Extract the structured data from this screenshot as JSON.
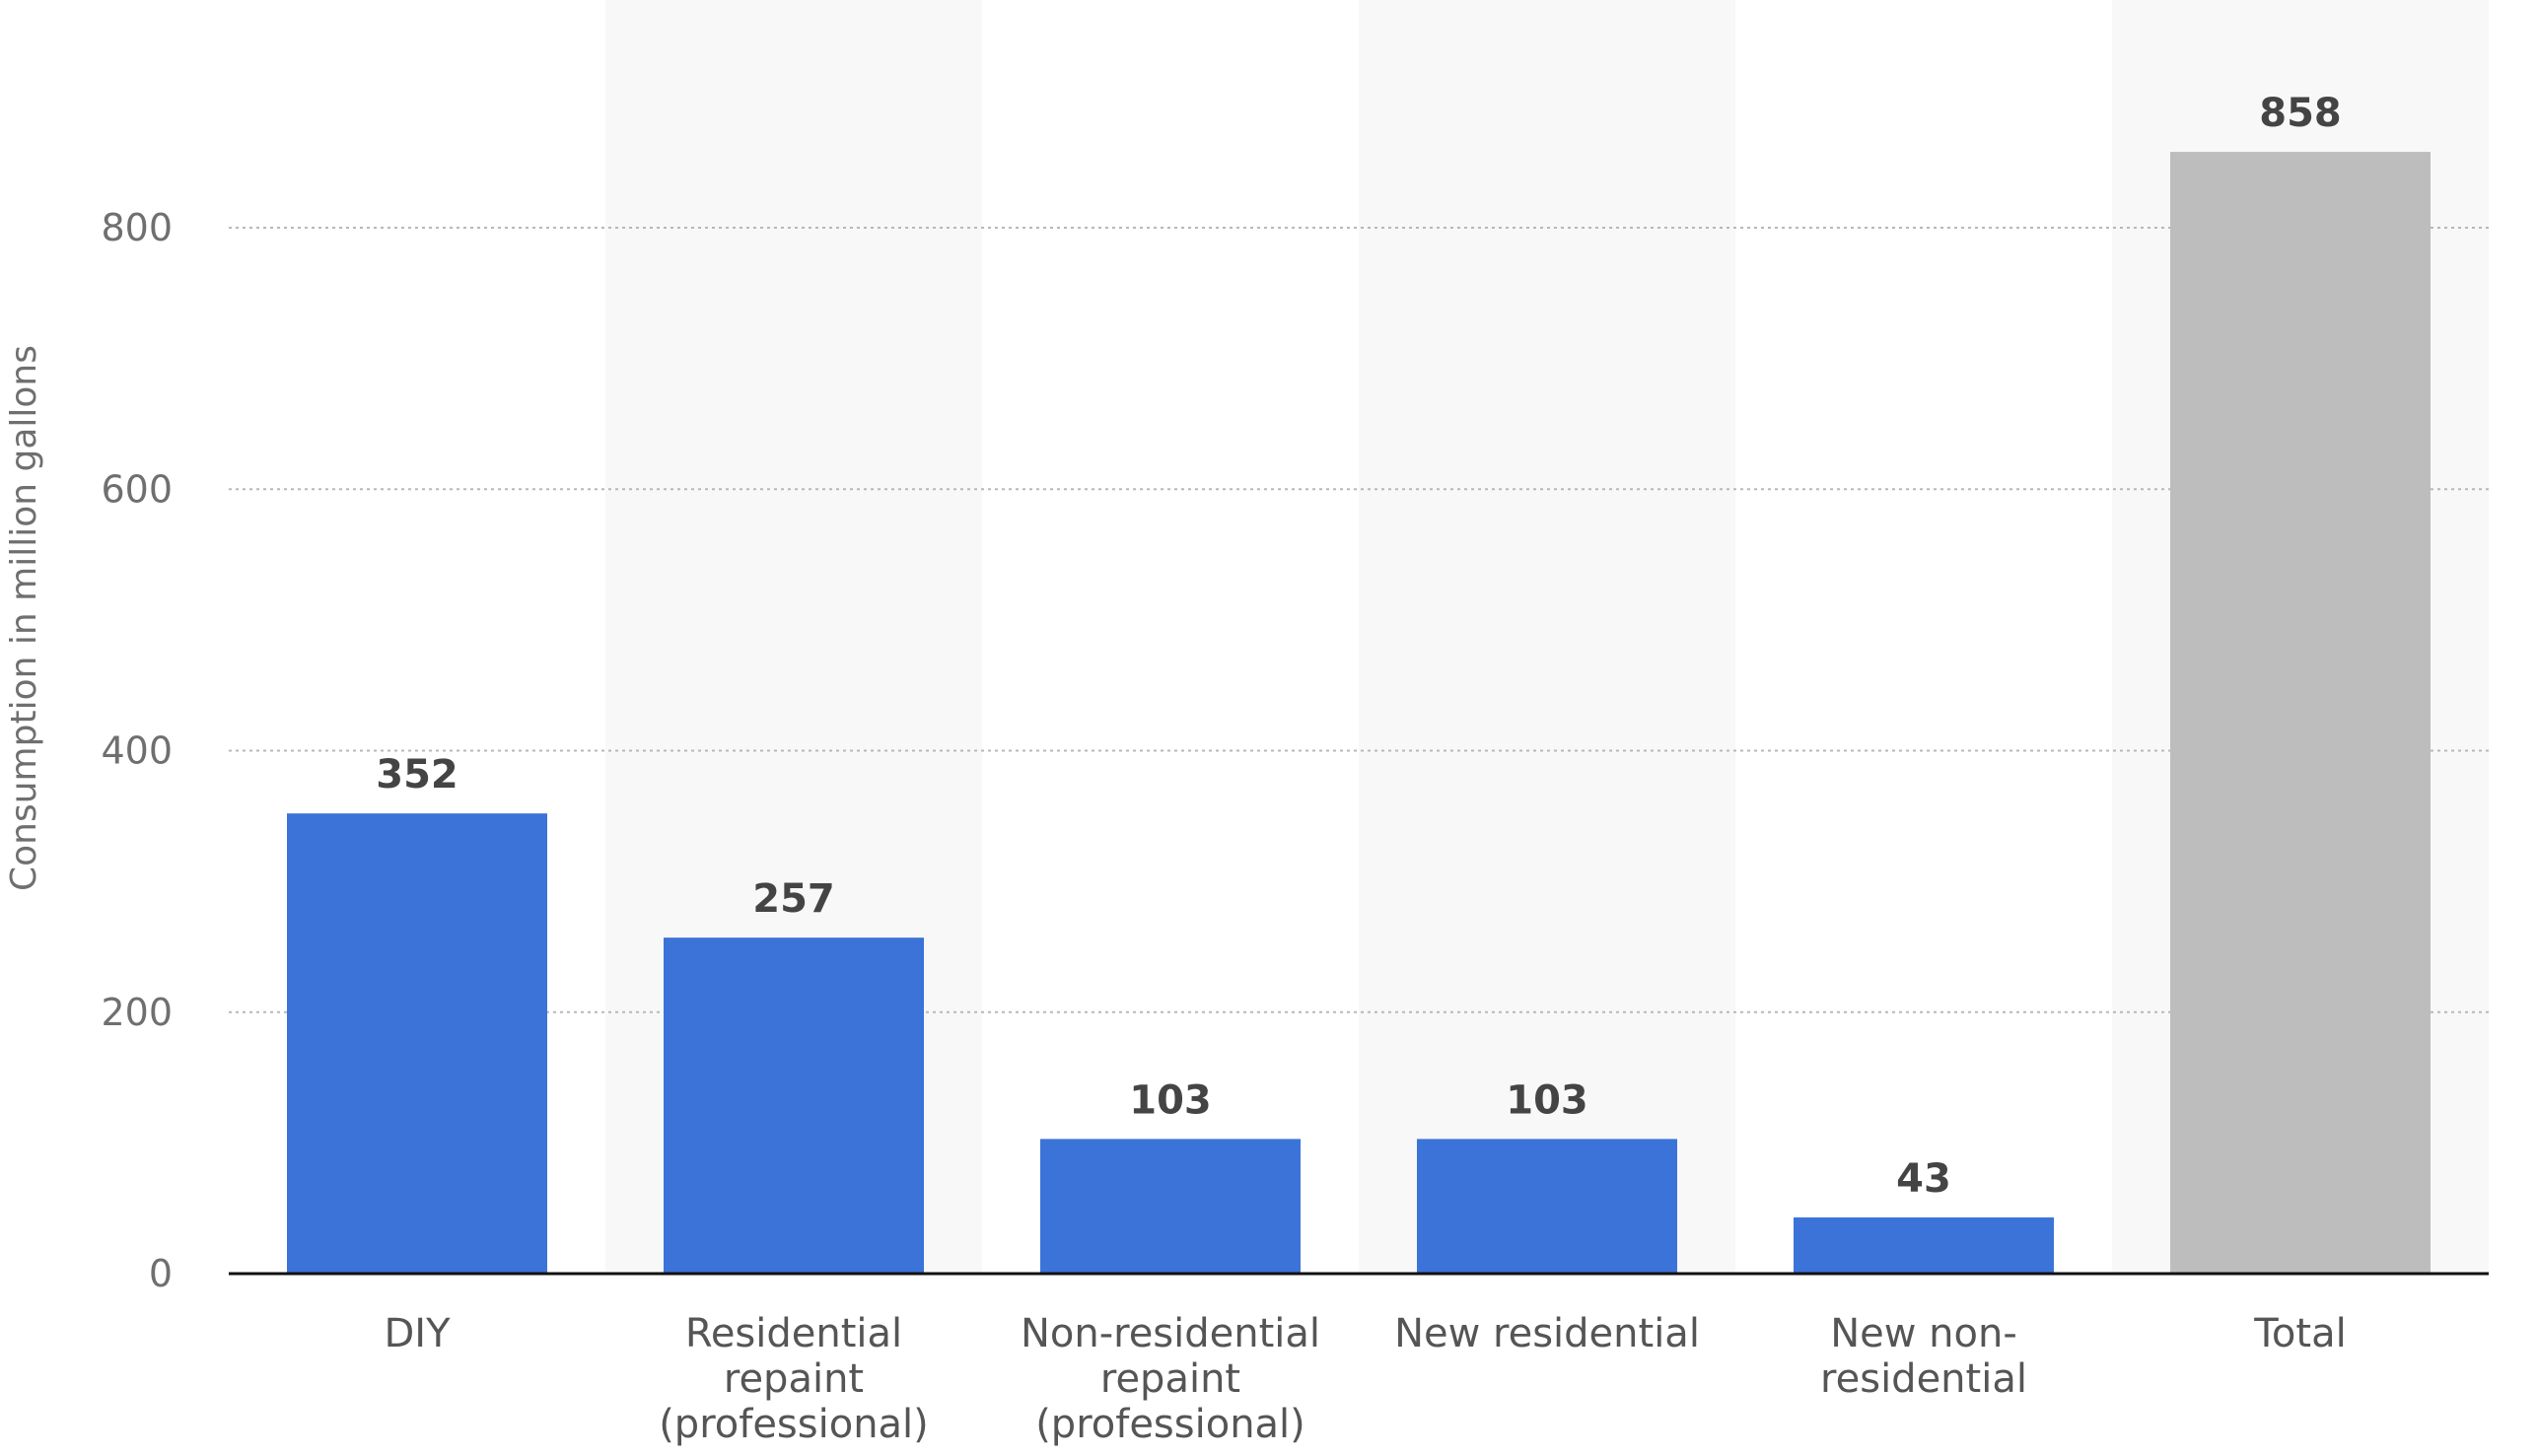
{
  "chart_data": {
    "type": "bar",
    "categories": [
      "DIY",
      "Residential repaint (professional)",
      "Non-residential repaint (professional)",
      "New residential",
      "New non-residential",
      "Total"
    ],
    "category_lines": [
      [
        "DIY"
      ],
      [
        "Residential",
        "repaint",
        "(professional)"
      ],
      [
        "Non-residential",
        "repaint",
        "(professional)"
      ],
      [
        "New residential"
      ],
      [
        "New non-",
        "residential"
      ],
      [
        "Total"
      ]
    ],
    "values": [
      352,
      257,
      103,
      103,
      43,
      858
    ],
    "value_labels": [
      "352",
      "257",
      "103",
      "103",
      "43",
      "858"
    ],
    "bar_colors": [
      "#3c73d8",
      "#3c73d8",
      "#3c73d8",
      "#3c73d8",
      "#3c73d8",
      "#bdbdbd"
    ],
    "title": "",
    "xlabel": "",
    "ylabel": "Consumption in million gallons",
    "ylim": [
      0,
      900
    ],
    "yticks": [
      0,
      200,
      400,
      600,
      800
    ],
    "ytick_labels": [
      "0",
      "200",
      "400",
      "600",
      "800"
    ],
    "grid": true,
    "alternating_column_bands": true,
    "band_color": "#f8f8f8",
    "axis_line_color": "#111111"
  }
}
